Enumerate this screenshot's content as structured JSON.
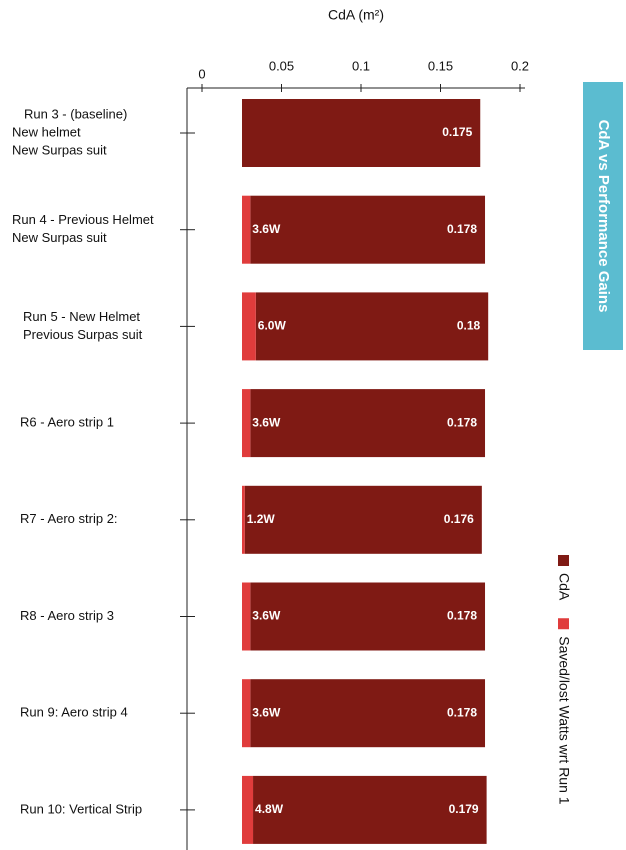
{
  "chart_data": {
    "type": "bar",
    "title": "CdA (m²)",
    "side_title": "CdA vs Performance Gains",
    "categories": [
      [
        "Run 3 - (baseline)",
        "New helmet",
        "New Surpas suit"
      ],
      [
        "Run 4 - Previous Helmet",
        "New Surpas suit"
      ],
      [
        "Run 5 - New Helmet",
        "Previous Surpas suit"
      ],
      [
        "R6 - Aero strip 1"
      ],
      [
        "R7 - Aero strip 2:"
      ],
      [
        "R8 - Aero strip 3"
      ],
      [
        "Run 9: Aero strip 4"
      ],
      [
        "Run 10: Vertical Strip"
      ]
    ],
    "series": [
      {
        "name": "CdA",
        "color": "#7f1a14",
        "values": [
          0.175,
          0.178,
          0.18,
          0.178,
          0.176,
          0.178,
          0.178,
          0.179
        ]
      },
      {
        "name": "Saved/lost Watts wrt Run 1",
        "color": "#e03c3c",
        "values": [
          null,
          3.6,
          6.0,
          3.6,
          1.2,
          3.6,
          3.6,
          4.8
        ],
        "value_labels": [
          null,
          "3.6W",
          "6.0W",
          "3.6W",
          "1.2W",
          "3.6W",
          "3.6W",
          "4.8W"
        ]
      }
    ],
    "xlim": [
      0,
      0.2
    ],
    "xticks": [
      0,
      0.05,
      0.1,
      0.15,
      0.2
    ]
  }
}
